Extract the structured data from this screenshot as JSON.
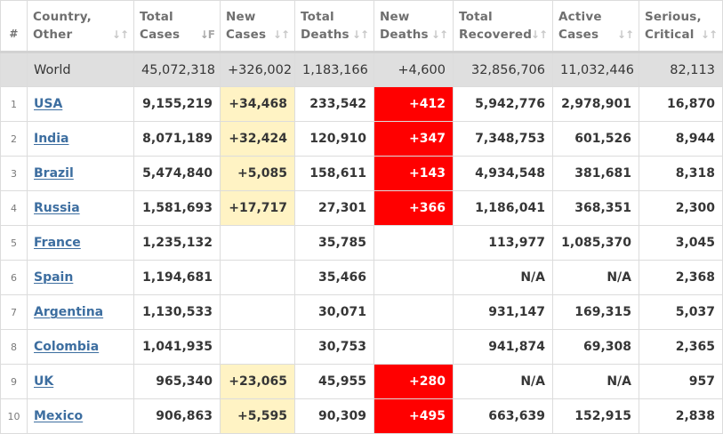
{
  "headers": {
    "rank": "#",
    "country": [
      "Country,",
      "Other"
    ],
    "total_cases": [
      "Total",
      "Cases"
    ],
    "new_cases": [
      "New",
      "Cases"
    ],
    "total_deaths": [
      "Total",
      "Deaths"
    ],
    "new_deaths": [
      "New",
      "Deaths"
    ],
    "total_recovered": [
      "Total",
      "Recovered"
    ],
    "active_cases": [
      "Active",
      "Cases"
    ],
    "serious_critical": [
      "Serious,",
      "Critical"
    ]
  },
  "sort_icons": {
    "default": "↓↑",
    "active": "↓F"
  },
  "world": {
    "country": "World",
    "total_cases": "45,072,318",
    "new_cases": "+326,002",
    "total_deaths": "1,183,166",
    "new_deaths": "+4,600",
    "total_recovered": "32,856,706",
    "active_cases": "11,032,446",
    "serious_critical": "82,113"
  },
  "rows": [
    {
      "rank": "1",
      "country": "USA",
      "total_cases": "9,155,219",
      "new_cases": "+34,468",
      "total_deaths": "233,542",
      "new_deaths": "+412",
      "total_recovered": "5,942,776",
      "active_cases": "2,978,901",
      "serious_critical": "16,870"
    },
    {
      "rank": "2",
      "country": "India",
      "total_cases": "8,071,189",
      "new_cases": "+32,424",
      "total_deaths": "120,910",
      "new_deaths": "+347",
      "total_recovered": "7,348,753",
      "active_cases": "601,526",
      "serious_critical": "8,944"
    },
    {
      "rank": "3",
      "country": "Brazil",
      "total_cases": "5,474,840",
      "new_cases": "+5,085",
      "total_deaths": "158,611",
      "new_deaths": "+143",
      "total_recovered": "4,934,548",
      "active_cases": "381,681",
      "serious_critical": "8,318"
    },
    {
      "rank": "4",
      "country": "Russia",
      "total_cases": "1,581,693",
      "new_cases": "+17,717",
      "total_deaths": "27,301",
      "new_deaths": "+366",
      "total_recovered": "1,186,041",
      "active_cases": "368,351",
      "serious_critical": "2,300"
    },
    {
      "rank": "5",
      "country": "France",
      "total_cases": "1,235,132",
      "new_cases": "",
      "total_deaths": "35,785",
      "new_deaths": "",
      "total_recovered": "113,977",
      "active_cases": "1,085,370",
      "serious_critical": "3,045"
    },
    {
      "rank": "6",
      "country": "Spain",
      "total_cases": "1,194,681",
      "new_cases": "",
      "total_deaths": "35,466",
      "new_deaths": "",
      "total_recovered": "N/A",
      "active_cases": "N/A",
      "serious_critical": "2,368"
    },
    {
      "rank": "7",
      "country": "Argentina",
      "total_cases": "1,130,533",
      "new_cases": "",
      "total_deaths": "30,071",
      "new_deaths": "",
      "total_recovered": "931,147",
      "active_cases": "169,315",
      "serious_critical": "5,037"
    },
    {
      "rank": "8",
      "country": "Colombia",
      "total_cases": "1,041,935",
      "new_cases": "",
      "total_deaths": "30,753",
      "new_deaths": "",
      "total_recovered": "941,874",
      "active_cases": "69,308",
      "serious_critical": "2,365"
    },
    {
      "rank": "9",
      "country": "UK",
      "total_cases": "965,340",
      "new_cases": "+23,065",
      "total_deaths": "45,955",
      "new_deaths": "+280",
      "total_recovered": "N/A",
      "active_cases": "N/A",
      "serious_critical": "957"
    },
    {
      "rank": "10",
      "country": "Mexico",
      "total_cases": "906,863",
      "new_cases": "+5,595",
      "total_deaths": "90,309",
      "new_deaths": "+495",
      "total_recovered": "663,639",
      "active_cases": "152,915",
      "serious_critical": "2,838"
    }
  ],
  "colors": {
    "new_cases_highlight": "#fff3c4",
    "new_deaths_highlight": "#ff0000",
    "world_row_bg": "#dfdfdf",
    "link": "#3d6ea0"
  }
}
